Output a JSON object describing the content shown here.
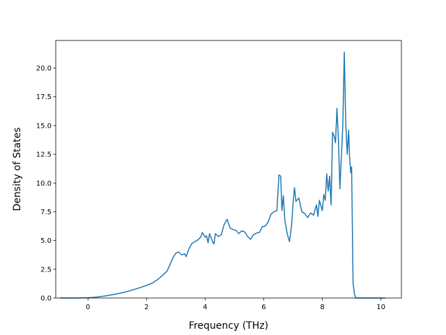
{
  "chart_data": {
    "type": "line",
    "title": "",
    "xlabel": "Frequency (THz)",
    "ylabel": "Density of States",
    "xlim": [
      -1.1,
      10.7
    ],
    "ylim": [
      0,
      22.4
    ],
    "xticks": [
      0,
      2,
      4,
      6,
      8,
      10
    ],
    "xtick_labels": [
      "0",
      "2",
      "4",
      "6",
      "8",
      "10"
    ],
    "yticks": [
      0,
      2.5,
      5,
      7.5,
      10,
      12.5,
      15,
      17.5,
      20
    ],
    "ytick_labels": [
      "0.0",
      "2.5",
      "5.0",
      "7.5",
      "10.0",
      "12.5",
      "15.0",
      "17.5",
      "20.0"
    ],
    "grid": false,
    "line_color": "#1f77b4",
    "series": [
      {
        "x": [
          -0.95,
          -0.5,
          0,
          0.3,
          0.6,
          0.9,
          1.2,
          1.5,
          1.8,
          2.0,
          2.2,
          2.4,
          2.6,
          2.7,
          2.8,
          2.9,
          3.0,
          3.1,
          3.2,
          3.3,
          3.35,
          3.45,
          3.55,
          3.65,
          3.75,
          3.85,
          3.9,
          4.0,
          4.05,
          4.1,
          4.15,
          4.25,
          4.3,
          4.35,
          4.45,
          4.55,
          4.65,
          4.75,
          4.85,
          4.95,
          5.05,
          5.15,
          5.25,
          5.35,
          5.45,
          5.55,
          5.65,
          5.75,
          5.85,
          5.95,
          6.05,
          6.15,
          6.25,
          6.35,
          6.45,
          6.52,
          6.58,
          6.62,
          6.67,
          6.72,
          6.8,
          6.88,
          6.95,
          7.0,
          7.05,
          7.1,
          7.2,
          7.3,
          7.4,
          7.5,
          7.6,
          7.7,
          7.8,
          7.85,
          7.9,
          8.0,
          8.05,
          8.1,
          8.15,
          8.2,
          8.25,
          8.3,
          8.35,
          8.4,
          8.45,
          8.5,
          8.55,
          8.6,
          8.7,
          8.75,
          8.8,
          8.85,
          8.9,
          8.93,
          8.97,
          9.0,
          9.05,
          9.1,
          9.15,
          9.2,
          9.3,
          9.5,
          9.8,
          10.15
        ],
        "y": [
          0,
          0,
          0.02,
          0.08,
          0.18,
          0.32,
          0.48,
          0.68,
          0.92,
          1.1,
          1.3,
          1.65,
          2.1,
          2.35,
          2.9,
          3.5,
          3.9,
          4.0,
          3.75,
          3.85,
          3.6,
          4.3,
          4.75,
          4.9,
          5.05,
          5.3,
          5.7,
          5.3,
          5.4,
          4.8,
          5.6,
          4.9,
          4.7,
          5.6,
          5.35,
          5.5,
          6.4,
          6.85,
          6.1,
          5.95,
          5.9,
          5.6,
          5.85,
          5.75,
          5.35,
          5.1,
          5.5,
          5.65,
          5.7,
          6.2,
          6.25,
          6.6,
          7.3,
          7.5,
          7.6,
          10.7,
          10.6,
          7.6,
          8.9,
          6.8,
          5.6,
          4.9,
          6.3,
          8.2,
          9.6,
          8.4,
          8.7,
          7.5,
          7.35,
          7.0,
          7.4,
          7.2,
          8.1,
          7.1,
          8.5,
          7.6,
          9.0,
          8.5,
          10.8,
          9.3,
          10.6,
          8.1,
          14.4,
          14.1,
          13.5,
          16.5,
          13.8,
          9.5,
          15.0,
          21.4,
          15.2,
          12.5,
          14.6,
          12.3,
          10.9,
          11.4,
          1.3,
          0.3,
          0,
          0,
          0,
          0,
          0,
          0
        ]
      }
    ]
  }
}
